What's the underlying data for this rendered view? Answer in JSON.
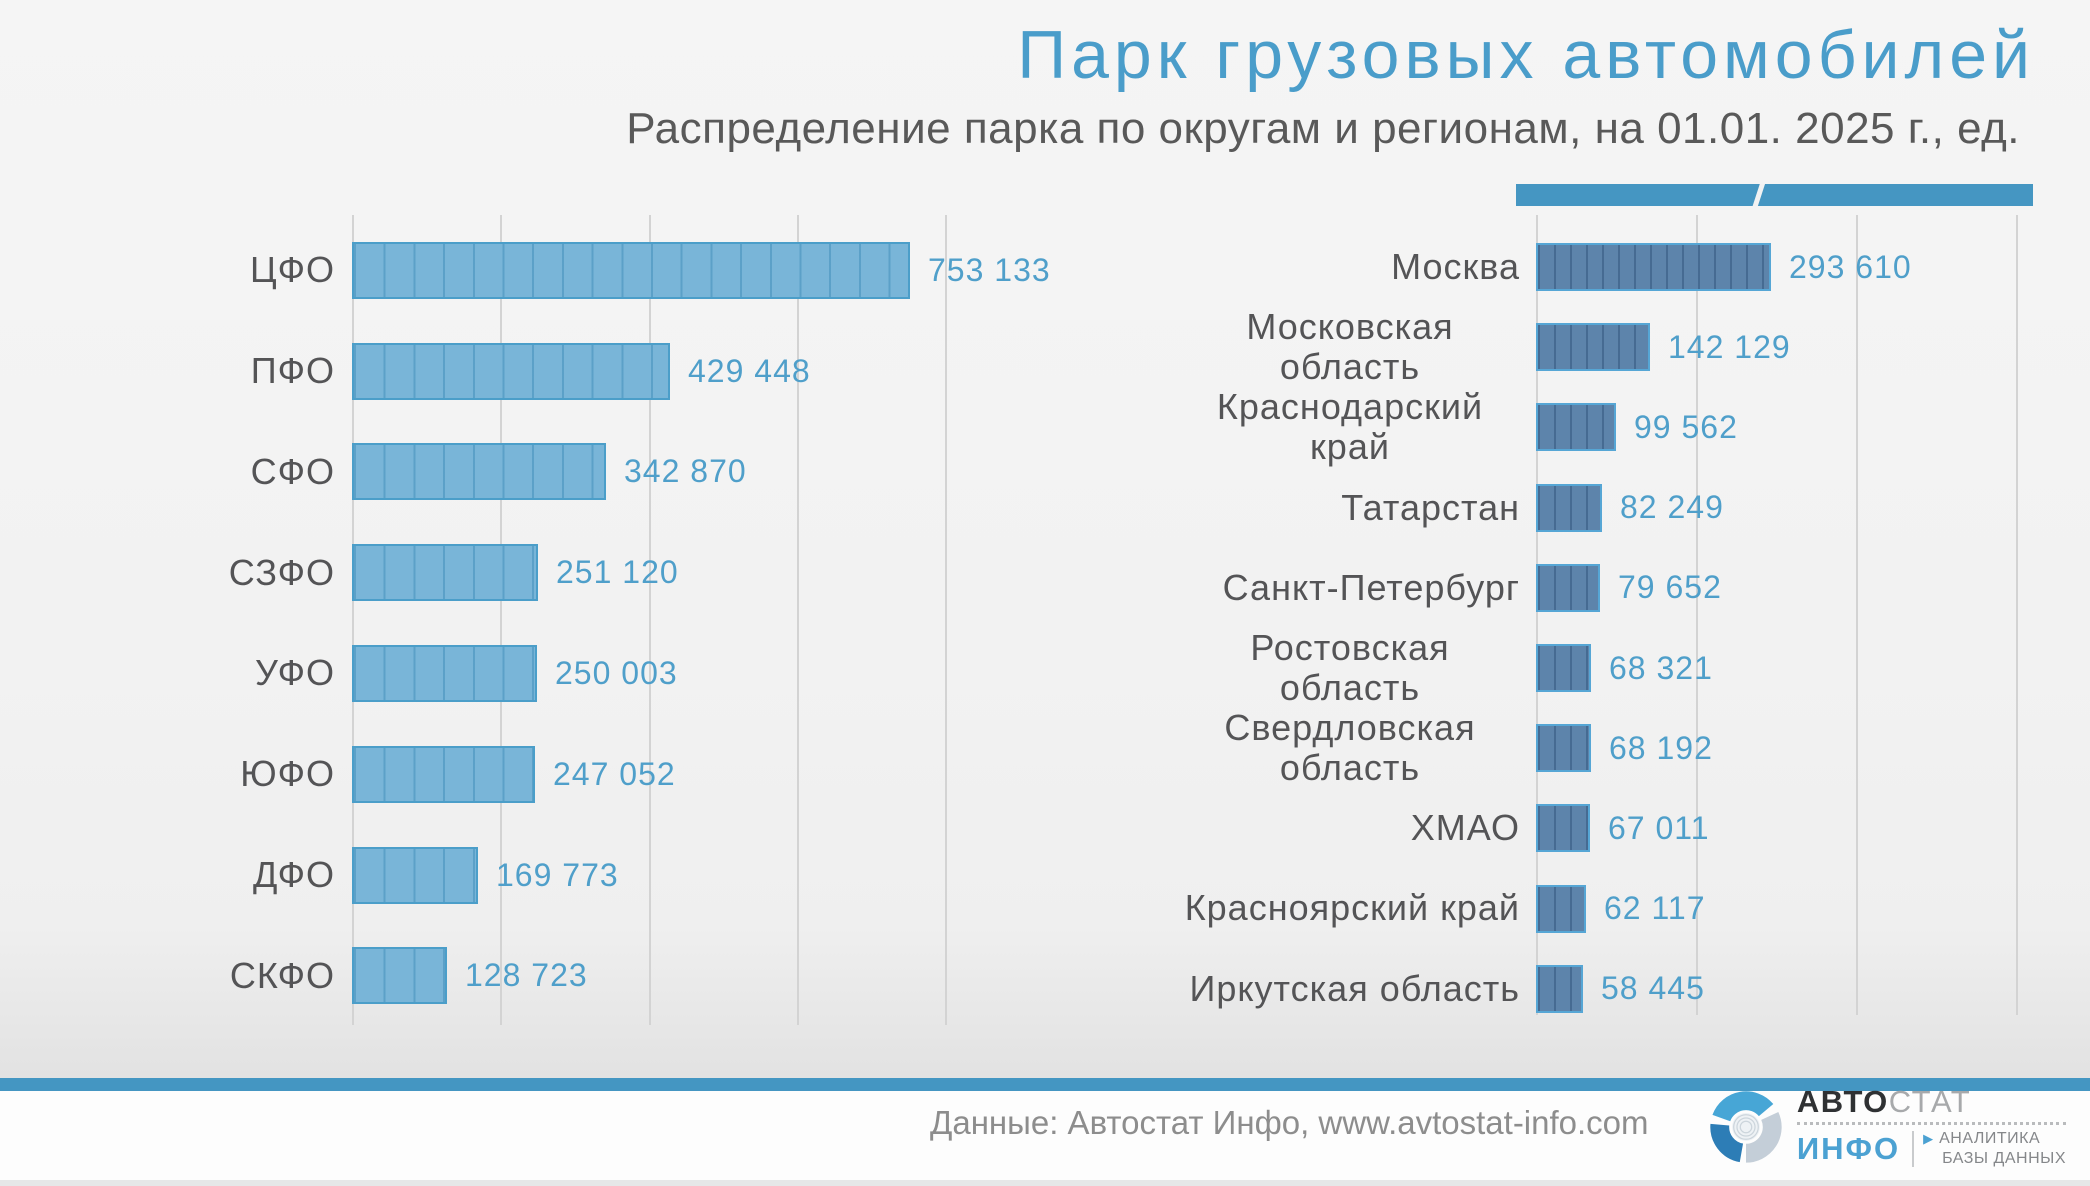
{
  "header": {
    "title": "Парк грузовых автомобилей",
    "subtitle": "Распределение парка по округам и регионам, на 01.01. 2025 г., ед."
  },
  "footer": {
    "source_text": "Данные: Автостат Инфо, www.avtostat-info.com",
    "logo": {
      "brand_part1": "АВТО",
      "brand_part2": "СТАТ",
      "brand_sub": "ИНФО",
      "tagline_arrow": "▶",
      "tagline_line1": "АНАЛИТИКА",
      "tagline_line2": "БАЗЫ ДАННЫХ"
    }
  },
  "colors": {
    "title_blue": "#4a9dca",
    "subtitle_gray": "#595959",
    "accent_blue": "#4596c2",
    "left_bar_fill": "#79b5d8",
    "left_bar_border": "#4b9ec9",
    "right_bar_fill": "#5d84ab",
    "right_bar_border": "#56a6d5",
    "value_label_blue": "#4f9fca",
    "category_label_gray": "#545456",
    "gridline_gray": "#d3d3d3"
  },
  "chart_data": [
    {
      "type": "bar",
      "orientation": "horizontal",
      "title": "",
      "group": "federal-districts",
      "categories": [
        "ЦФО",
        "ПФО",
        "СФО",
        "СЗФО",
        "УФО",
        "ЮФО",
        "ДФО",
        "СКФО"
      ],
      "values": [
        753133,
        429448,
        342870,
        251120,
        250003,
        247052,
        169773,
        128723
      ],
      "value_labels": [
        "753 133",
        "429 448",
        "342 870",
        "251 120",
        "250 003",
        "247 052",
        "169 773",
        "128 723"
      ],
      "xlim": [
        0,
        800000
      ],
      "gridline_step": 200000,
      "grid": true,
      "legend": "none"
    },
    {
      "type": "bar",
      "orientation": "horizontal",
      "title": "",
      "group": "regions",
      "categories": [
        "Москва",
        "Московская область",
        "Краснодарский край",
        "Татарстан",
        "Санкт-Петербург",
        "Ростовская область",
        "Свердловская область",
        "ХМАО",
        "Красноярский край",
        "Иркутская область"
      ],
      "values": [
        293610,
        142129,
        99562,
        82249,
        79652,
        68321,
        68192,
        67011,
        62117,
        58445
      ],
      "value_labels": [
        "293 610",
        "142 129",
        "99 562",
        "82 249",
        "79 652",
        "68 321",
        "68 192",
        "67 011",
        "62 117",
        "58 445"
      ],
      "xlim": [
        0,
        600000
      ],
      "gridline_step": 200000,
      "grid": true,
      "legend": "none"
    }
  ]
}
